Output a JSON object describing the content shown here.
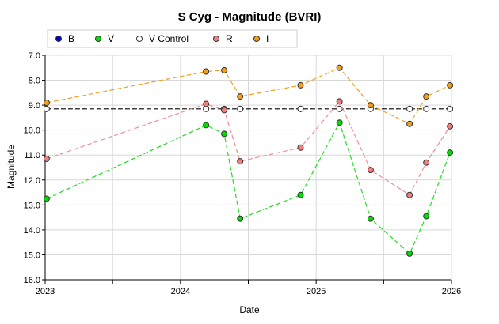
{
  "chart_data": {
    "type": "line",
    "title": "S Cyg - Magnitude (BVRI)",
    "xlabel": "Date",
    "ylabel": "Magnitude",
    "xlim": [
      "2023-01-01",
      "2026-01-01"
    ],
    "ylim": [
      7.0,
      16.0
    ],
    "y_inverted": true,
    "grid": true,
    "legend_position": "top",
    "x_ticks": [
      {
        "value": "2023-01-01",
        "label": "2023"
      },
      {
        "value": "2023-07-02",
        "label": ""
      },
      {
        "value": "2024-01-01",
        "label": "2024"
      },
      {
        "value": "2024-07-02",
        "label": ""
      },
      {
        "value": "2025-01-01",
        "label": "2025"
      },
      {
        "value": "2025-07-02",
        "label": ""
      },
      {
        "value": "2026-01-01",
        "label": "2026"
      }
    ],
    "y_ticks": [
      "7.0",
      "8.0",
      "9.0",
      "10.0",
      "11.0",
      "12.0",
      "13.0",
      "14.0",
      "15.0",
      "16.0"
    ],
    "series": [
      {
        "name": "B",
        "color": "#0000cc",
        "line_color": "#0000cc",
        "dashed": true,
        "points": []
      },
      {
        "name": "V",
        "color": "#00dd00",
        "line_color": "#22dd22",
        "dashed": true,
        "points": [
          {
            "date": "2023-01-05",
            "mag": 12.75
          },
          {
            "date": "2024-03-10",
            "mag": 9.8
          },
          {
            "date": "2024-04-28",
            "mag": 10.15
          },
          {
            "date": "2024-06-10",
            "mag": 13.55
          },
          {
            "date": "2024-11-20",
            "mag": 12.6
          },
          {
            "date": "2025-03-05",
            "mag": 9.7
          },
          {
            "date": "2025-05-28",
            "mag": 13.55
          },
          {
            "date": "2025-09-10",
            "mag": 14.95
          },
          {
            "date": "2025-10-25",
            "mag": 13.45
          },
          {
            "date": "2025-12-28",
            "mag": 10.9
          }
        ]
      },
      {
        "name": "V Control",
        "color": "#ffffff",
        "line_color": "#000000",
        "dashed": true,
        "points": [
          {
            "date": "2023-01-05",
            "mag": 9.15
          },
          {
            "date": "2024-03-10",
            "mag": 9.15
          },
          {
            "date": "2024-04-28",
            "mag": 9.15
          },
          {
            "date": "2024-06-10",
            "mag": 9.15
          },
          {
            "date": "2024-11-20",
            "mag": 9.15
          },
          {
            "date": "2025-03-05",
            "mag": 9.15
          },
          {
            "date": "2025-05-28",
            "mag": 9.15
          },
          {
            "date": "2025-09-10",
            "mag": 9.15
          },
          {
            "date": "2025-10-25",
            "mag": 9.15
          },
          {
            "date": "2025-12-28",
            "mag": 9.15
          }
        ]
      },
      {
        "name": "R",
        "color": "#f08080",
        "line_color": "#ee9090",
        "dashed": true,
        "points": [
          {
            "date": "2023-01-05",
            "mag": 11.15
          },
          {
            "date": "2024-03-10",
            "mag": 8.95
          },
          {
            "date": "2024-04-28",
            "mag": 9.2
          },
          {
            "date": "2024-06-10",
            "mag": 11.25
          },
          {
            "date": "2024-11-20",
            "mag": 10.7
          },
          {
            "date": "2025-03-05",
            "mag": 8.85
          },
          {
            "date": "2025-05-28",
            "mag": 11.6
          },
          {
            "date": "2025-09-10",
            "mag": 12.6
          },
          {
            "date": "2025-10-25",
            "mag": 11.3
          },
          {
            "date": "2025-12-28",
            "mag": 9.85
          }
        ]
      },
      {
        "name": "I",
        "color": "#f0a020",
        "line_color": "#f0a020",
        "dashed": true,
        "points": [
          {
            "date": "2023-01-05",
            "mag": 8.9
          },
          {
            "date": "2024-03-10",
            "mag": 7.65
          },
          {
            "date": "2024-04-28",
            "mag": 7.6
          },
          {
            "date": "2024-06-10",
            "mag": 8.65
          },
          {
            "date": "2024-11-20",
            "mag": 8.2
          },
          {
            "date": "2025-03-05",
            "mag": 7.5
          },
          {
            "date": "2025-05-28",
            "mag": 9.0
          },
          {
            "date": "2025-09-10",
            "mag": 9.75
          },
          {
            "date": "2025-10-25",
            "mag": 8.65
          },
          {
            "date": "2025-12-28",
            "mag": 8.2
          }
        ]
      }
    ]
  }
}
